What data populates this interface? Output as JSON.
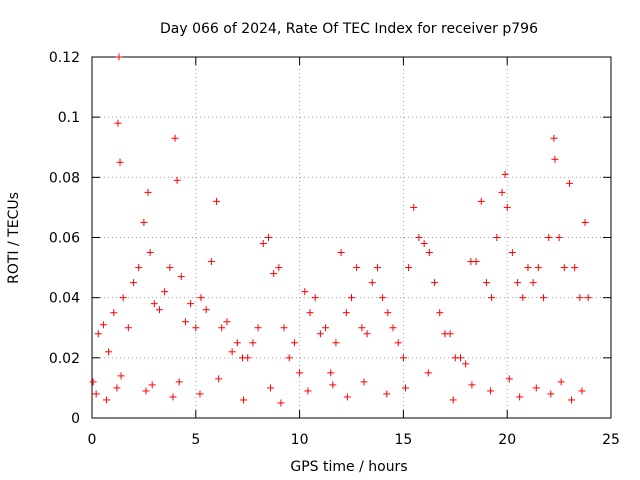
{
  "chart_data": {
    "type": "scatter",
    "title": "Day 066 of 2024, Rate Of TEC Index for receiver p796",
    "xlabel": "GPS time / hours",
    "ylabel": "ROTI / TECUs",
    "xlim": [
      0,
      25
    ],
    "ylim": [
      0,
      0.12
    ],
    "x_ticks": [
      0,
      5,
      10,
      15,
      20,
      25
    ],
    "x_tick_labels": [
      "0",
      "5",
      "10",
      "15",
      "20",
      "25"
    ],
    "y_ticks": [
      0,
      0.02,
      0.04,
      0.06,
      0.08,
      0.1,
      0.12
    ],
    "y_tick_labels": [
      "0",
      "0.02",
      "0.04",
      "0.06",
      "0.08",
      "0.1",
      "0.12"
    ],
    "grid": true,
    "marker": "+",
    "series": [
      {
        "name": "ROTI",
        "color": "#ff0000",
        "x": [
          0.05,
          0.3,
          0.55,
          0.8,
          1.05,
          1.25,
          1.3,
          1.35,
          1.5,
          1.75,
          2.0,
          2.25,
          2.5,
          2.7,
          2.8,
          3.0,
          3.25,
          3.5,
          3.75,
          4.0,
          4.1,
          4.3,
          4.5,
          4.75,
          5.0,
          5.25,
          5.5,
          5.75,
          6.0,
          6.25,
          6.5,
          6.75,
          7.0,
          7.25,
          7.5,
          7.75,
          8.0,
          8.25,
          8.5,
          8.75,
          9.0,
          9.25,
          9.5,
          9.75,
          10.0,
          10.25,
          10.5,
          10.75,
          11.0,
          11.25,
          11.5,
          11.75,
          12.0,
          12.25,
          12.5,
          12.75,
          13.0,
          13.25,
          13.5,
          13.75,
          14.0,
          14.25,
          14.5,
          14.75,
          15.0,
          15.25,
          15.5,
          15.75,
          16.0,
          16.25,
          16.5,
          16.75,
          17.0,
          17.25,
          17.5,
          17.75,
          18.0,
          18.25,
          18.5,
          18.75,
          19.0,
          19.25,
          19.5,
          19.75,
          19.9,
          20.0,
          20.25,
          20.5,
          20.75,
          21.0,
          21.25,
          21.5,
          21.75,
          22.0,
          22.25,
          22.3,
          22.5,
          22.75,
          23.0,
          23.25,
          23.5,
          23.75,
          23.9,
          0.2,
          0.7,
          1.2,
          1.4,
          2.6,
          2.9,
          3.9,
          4.2,
          5.2,
          6.1,
          7.3,
          8.6,
          9.1,
          10.4,
          11.6,
          12.3,
          13.1,
          14.2,
          15.1,
          16.2,
          17.4,
          18.3,
          19.2,
          20.1,
          20.6,
          21.4,
          22.1,
          22.6,
          23.1,
          23.6
        ],
        "y": [
          0.012,
          0.028,
          0.031,
          0.022,
          0.035,
          0.098,
          0.12,
          0.085,
          0.04,
          0.03,
          0.045,
          0.05,
          0.065,
          0.075,
          0.055,
          0.038,
          0.036,
          0.042,
          0.05,
          0.093,
          0.079,
          0.047,
          0.032,
          0.038,
          0.03,
          0.04,
          0.036,
          0.052,
          0.072,
          0.03,
          0.032,
          0.022,
          0.025,
          0.02,
          0.02,
          0.025,
          0.03,
          0.058,
          0.06,
          0.048,
          0.05,
          0.03,
          0.02,
          0.025,
          0.015,
          0.042,
          0.035,
          0.04,
          0.028,
          0.03,
          0.015,
          0.025,
          0.055,
          0.035,
          0.04,
          0.05,
          0.03,
          0.028,
          0.045,
          0.05,
          0.04,
          0.035,
          0.03,
          0.025,
          0.02,
          0.05,
          0.07,
          0.06,
          0.058,
          0.055,
          0.045,
          0.035,
          0.028,
          0.028,
          0.02,
          0.02,
          0.018,
          0.052,
          0.052,
          0.072,
          0.045,
          0.04,
          0.06,
          0.075,
          0.081,
          0.07,
          0.055,
          0.045,
          0.04,
          0.05,
          0.045,
          0.05,
          0.04,
          0.06,
          0.093,
          0.086,
          0.06,
          0.05,
          0.078,
          0.05,
          0.04,
          0.065,
          0.04,
          0.008,
          0.006,
          0.01,
          0.014,
          0.009,
          0.011,
          0.007,
          0.012,
          0.008,
          0.013,
          0.006,
          0.01,
          0.005,
          0.009,
          0.011,
          0.007,
          0.012,
          0.008,
          0.01,
          0.015,
          0.006,
          0.011,
          0.009,
          0.013,
          0.007,
          0.01,
          0.008,
          0.012,
          0.006,
          0.009
        ]
      }
    ]
  }
}
